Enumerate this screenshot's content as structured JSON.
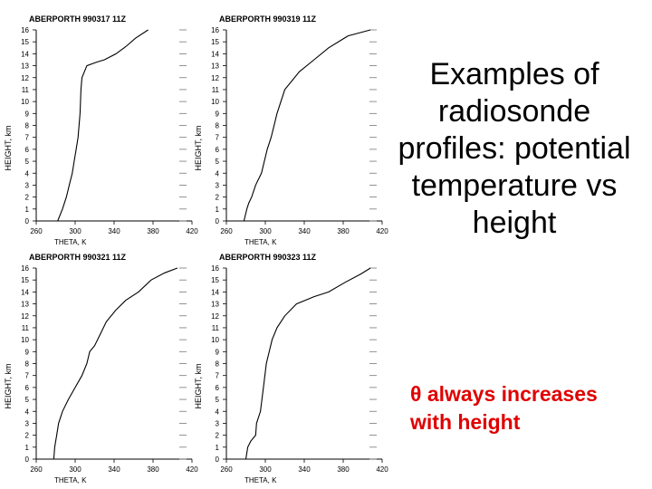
{
  "slide": {
    "title": "Examples of radiosonde profiles: potential temperature vs height",
    "note": "θ always increases with height"
  },
  "chart_data": [
    {
      "type": "line",
      "title": "ABERPORTH 990317 11Z",
      "xlabel": "THETA, K",
      "ylabel": "HEIGHT, km",
      "xlim": [
        260,
        420
      ],
      "ylim": [
        0,
        16
      ],
      "xticks": [
        260,
        300,
        340,
        380,
        420
      ],
      "yticks": [
        0,
        1,
        2,
        3,
        4,
        5,
        6,
        7,
        8,
        9,
        10,
        11,
        12,
        13,
        14,
        15,
        16
      ],
      "x": [
        282,
        287,
        291,
        294,
        297,
        299,
        301,
        303,
        305,
        306,
        307,
        312,
        322,
        330,
        342,
        352,
        362,
        375
      ],
      "y": [
        0,
        1,
        2,
        3,
        4,
        5,
        6,
        7,
        9,
        11,
        12,
        13,
        13.3,
        13.5,
        14,
        14.6,
        15.3,
        16
      ]
    },
    {
      "type": "line",
      "title": "ABERPORTH 990319 11Z",
      "xlabel": "THETA, K",
      "ylabel": "HEIGHT, km",
      "xlim": [
        260,
        420
      ],
      "ylim": [
        0,
        16
      ],
      "xticks": [
        260,
        300,
        340,
        380,
        420
      ],
      "yticks": [
        0,
        1,
        2,
        3,
        4,
        5,
        6,
        7,
        8,
        9,
        10,
        11,
        12,
        13,
        14,
        15,
        16
      ],
      "x": [
        278,
        281,
        283,
        286,
        290,
        296,
        299,
        302,
        306,
        309,
        312,
        320,
        335,
        350,
        365,
        385,
        408
      ],
      "y": [
        0,
        1,
        1.5,
        2,
        3,
        4,
        5,
        6,
        7,
        8,
        9,
        11,
        12.5,
        13.5,
        14.5,
        15.5,
        16
      ]
    },
    {
      "type": "line",
      "title": "ABERPORTH 990321 11Z",
      "xlabel": "THETA, K",
      "ylabel": "HEIGHT, km",
      "xlim": [
        260,
        420
      ],
      "ylim": [
        0,
        16
      ],
      "xticks": [
        260,
        300,
        340,
        380,
        420
      ],
      "yticks": [
        0,
        1,
        2,
        3,
        4,
        5,
        6,
        7,
        8,
        9,
        10,
        11,
        12,
        13,
        14,
        15,
        16
      ],
      "x": [
        278,
        279,
        281,
        283,
        287,
        293,
        300,
        307,
        312,
        315,
        320,
        326,
        332,
        342,
        352,
        365,
        378,
        392,
        405
      ],
      "y": [
        0,
        1,
        2,
        3,
        4,
        5,
        6,
        7,
        8,
        9,
        9.5,
        10.5,
        11.5,
        12.5,
        13.3,
        14,
        15,
        15.6,
        16
      ]
    },
    {
      "type": "line",
      "title": "ABERPORTH 990323 11Z",
      "xlabel": "THETA, K",
      "ylabel": "HEIGHT, km",
      "xlim": [
        260,
        420
      ],
      "ylim": [
        0,
        16
      ],
      "xticks": [
        260,
        300,
        340,
        380,
        420
      ],
      "yticks": [
        0,
        1,
        2,
        3,
        4,
        5,
        6,
        7,
        8,
        9,
        10,
        11,
        12,
        13,
        14,
        15,
        16
      ],
      "x": [
        280,
        282,
        285,
        290,
        291,
        295,
        298,
        301,
        304,
        307,
        312,
        320,
        332,
        350,
        365,
        382,
        398,
        408
      ],
      "y": [
        0,
        1,
        1.5,
        2,
        3,
        4,
        6,
        8,
        9,
        10,
        11,
        12,
        13,
        13.6,
        14,
        14.8,
        15.5,
        16
      ]
    }
  ]
}
